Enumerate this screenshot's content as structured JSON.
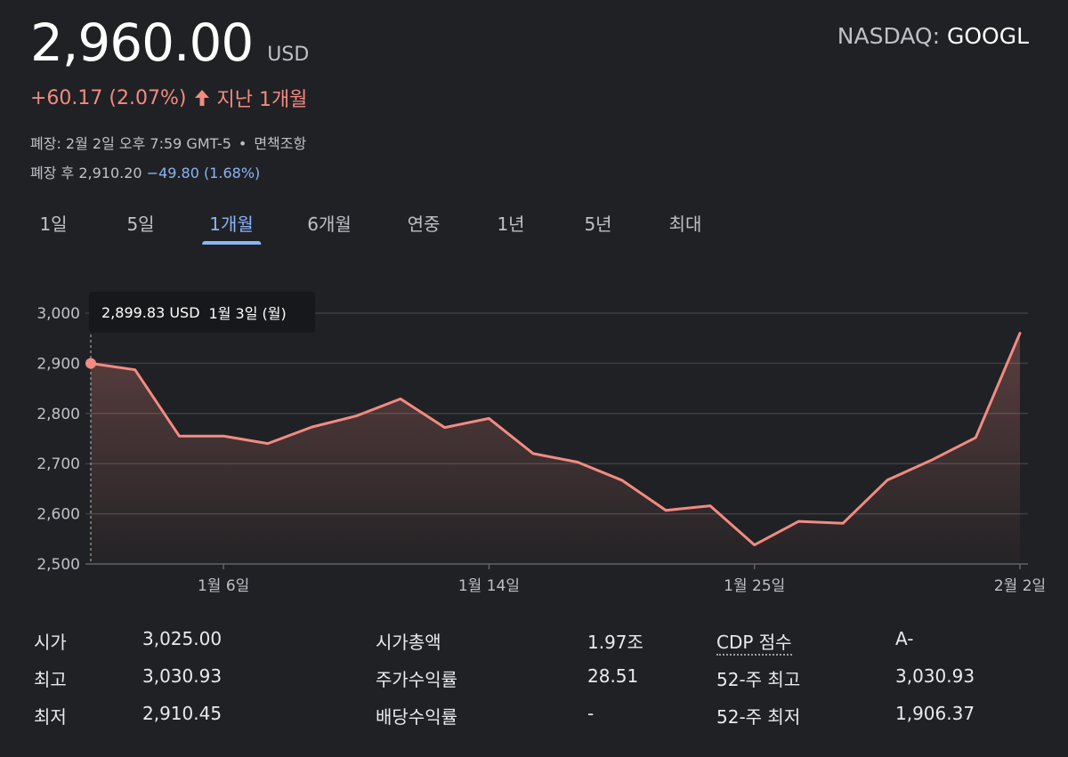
{
  "quote": {
    "price": "2,960.00",
    "currency": "USD",
    "exchange": "NASDAQ:",
    "symbol": "GOOGL",
    "change": "+60.17 (2.07%)",
    "period": "지난 1개월",
    "close_info": "폐장: 2월 2일 오후 7:59 GMT-5",
    "disclaimer": "면책조항",
    "after_hours_label": "폐장 후 2,910.20",
    "after_hours_change": "−49.80 (1.68%)"
  },
  "colors": {
    "background": "#202124",
    "line": "#f28b82",
    "positive": "#f28b82",
    "negative": "#8ab4f8",
    "active_tab": "#8ab4f8"
  },
  "tabs": [
    {
      "label": "1일"
    },
    {
      "label": "5일"
    },
    {
      "label": "1개월",
      "active": true
    },
    {
      "label": "6개월"
    },
    {
      "label": "연중"
    },
    {
      "label": "1년"
    },
    {
      "label": "5년"
    },
    {
      "label": "최대"
    }
  ],
  "tooltip": {
    "price": "2,899.83 USD",
    "date": "1월 3일 (월)"
  },
  "chart_data": {
    "type": "area",
    "series": [
      {
        "x": [
          "1월 3일",
          "1월 4일",
          "1월 5일",
          "1월 6일",
          "1월 7일",
          "1월 10일",
          "1월 11일",
          "1월 12일",
          "1월 13일",
          "1월 14일",
          "1월 18일",
          "1월 19일",
          "1월 20일",
          "1월 21일",
          "1월 24일",
          "1월 25일",
          "1월 26일",
          "1월 27일",
          "1월 28일",
          "1월 31일",
          "2월 1일",
          "2월 2일"
        ],
        "values": [
          2899.83,
          2887,
          2755,
          2755,
          2740,
          2773,
          2795,
          2829,
          2772,
          2790,
          2720,
          2703,
          2667,
          2607,
          2616,
          2538,
          2585,
          2581,
          2667,
          2707,
          2752,
          2960
        ]
      }
    ],
    "x_tick_labels": [
      "1월 6일",
      "1월 14일",
      "1월 25일",
      "2월 2일"
    ],
    "y_tick_labels": [
      "3,000",
      "2,900",
      "2,800",
      "2,700",
      "2,600",
      "2,500"
    ],
    "ylim": [
      2500,
      3000
    ],
    "grid": true
  },
  "stats": {
    "rows": [
      {
        "l1": "시가",
        "v1": "3,025.00",
        "l2": "시가총액",
        "v2": "1.97조",
        "l3": "CDP 점수",
        "v3": "A-"
      },
      {
        "l1": "최고",
        "v1": "3,030.93",
        "l2": "주가수익률",
        "v2": "28.51",
        "l3": "52-주 최고",
        "v3": "3,030.93"
      },
      {
        "l1": "최저",
        "v1": "2,910.45",
        "l2": "배당수익률",
        "v2": "-",
        "l3": "52-주 최저",
        "v3": "1,906.37"
      }
    ]
  }
}
